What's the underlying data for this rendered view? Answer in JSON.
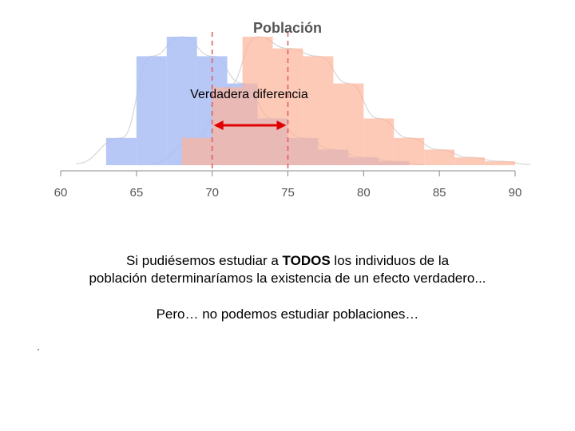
{
  "chart_data": {
    "type": "histogram",
    "title": "Población",
    "annotation": "Verdadera diferencia",
    "xlim": [
      60,
      90
    ],
    "x_ticks": [
      60,
      65,
      70,
      75,
      80,
      85,
      90
    ],
    "bin_width": 2,
    "series": [
      {
        "color": "#aabdf5",
        "mean": 70,
        "bins": [
          {
            "x0": 63,
            "x1": 65,
            "value": 7
          },
          {
            "x0": 65,
            "x1": 67,
            "value": 28
          },
          {
            "x0": 67,
            "x1": 69,
            "value": 33
          },
          {
            "x0": 69,
            "x1": 71,
            "value": 28
          },
          {
            "x0": 71,
            "x1": 73,
            "value": 21
          },
          {
            "x0": 73,
            "x1": 75,
            "value": 12
          },
          {
            "x0": 75,
            "x1": 77,
            "value": 7
          },
          {
            "x0": 77,
            "x1": 79,
            "value": 4
          },
          {
            "x0": 79,
            "x1": 81,
            "value": 2
          },
          {
            "x0": 81,
            "x1": 83,
            "value": 1
          }
        ]
      },
      {
        "color": "#fdb39a",
        "mean": 75,
        "bins": [
          {
            "x0": 68,
            "x1": 70,
            "value": 7
          },
          {
            "x0": 70,
            "x1": 72,
            "value": 20
          },
          {
            "x0": 72,
            "x1": 74,
            "value": 33
          },
          {
            "x0": 74,
            "x1": 76,
            "value": 30
          },
          {
            "x0": 76,
            "x1": 78,
            "value": 28
          },
          {
            "x0": 78,
            "x1": 80,
            "value": 21
          },
          {
            "x0": 80,
            "x1": 82,
            "value": 12
          },
          {
            "x0": 82,
            "x1": 84,
            "value": 7
          },
          {
            "x0": 84,
            "x1": 86,
            "value": 4
          },
          {
            "x0": 86,
            "x1": 88,
            "value": 2
          },
          {
            "x0": 88,
            "x1": 90,
            "value": 1
          }
        ]
      }
    ],
    "mean_line_color": "#e06060",
    "arrow_color": "#e00000"
  },
  "text": {
    "line1_pre": "Si pudiésemos estudiar a ",
    "line1_bold": "TODOS",
    "line1_post": " los individuos de la",
    "line2": "población determinaríamos la existencia de un efecto verdadero...",
    "line3": "Pero… no podemos estudiar poblaciones…"
  }
}
